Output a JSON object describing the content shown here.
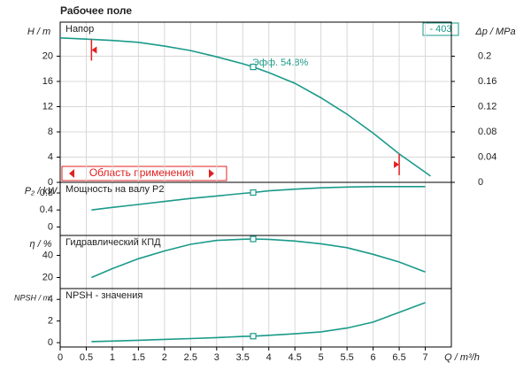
{
  "chart_data": [
    {
      "type": "line",
      "title": "Рабочее поле",
      "label": "- 403",
      "panel_title": "Напор",
      "ylabel": "H / m",
      "y2label": "Δp / MPa",
      "annotation": "Эфф. 54.8%",
      "range_label": "Область применения",
      "x": [
        0,
        0.5,
        1,
        1.5,
        2,
        2.5,
        3,
        3.5,
        3.7,
        4,
        4.5,
        5,
        5.5,
        6,
        6.5,
        7,
        7.1
      ],
      "series": [
        {
          "name": "Напор",
          "color": "#1a9a8a",
          "values": [
            22.9,
            22.7,
            22.5,
            22.2,
            21.6,
            20.9,
            19.9,
            18.8,
            18.3,
            17.4,
            15.7,
            13.4,
            10.8,
            7.8,
            4.5,
            1.6,
            1.0
          ]
        }
      ],
      "operating_point": {
        "x": 3.7,
        "y": 18.3
      },
      "range": [
        0.6,
        6.5
      ],
      "range_color": "#e02020",
      "ylim": [
        0,
        25.4
      ],
      "yticks": [
        0,
        4,
        8,
        12,
        16,
        20
      ],
      "y2lim": [
        0,
        0.254
      ],
      "y2ticks": [
        0,
        0.04,
        0.08,
        0.12,
        0.16,
        0.2
      ],
      "grid": true
    },
    {
      "type": "line",
      "panel_title": "Мощность на валу P2",
      "ylabel": "P₂ / kW",
      "x": [
        0.6,
        1,
        1.5,
        2,
        2.5,
        3,
        3.5,
        3.7,
        4,
        4.5,
        5,
        5.5,
        6,
        6.5,
        7
      ],
      "series": [
        {
          "name": "Мощность на валу P2",
          "color": "#1a9a8a",
          "values": [
            0.4,
            0.46,
            0.53,
            0.6,
            0.67,
            0.73,
            0.79,
            0.81,
            0.85,
            0.89,
            0.92,
            0.94,
            0.95,
            0.95,
            0.95
          ]
        }
      ],
      "operating_point": {
        "x": 3.7,
        "y": 0.81
      },
      "ylim": [
        -0.2,
        1.05
      ],
      "yticks": [
        0,
        0.4,
        0.8
      ],
      "grid": false
    },
    {
      "type": "line",
      "panel_title": "Гидравлический КПД",
      "ylabel": "η / %",
      "x": [
        0.6,
        1,
        1.5,
        2,
        2.5,
        3,
        3.5,
        3.7,
        4,
        4.5,
        5,
        5.5,
        6,
        6.5,
        7
      ],
      "series": [
        {
          "name": "Гидравлический КПД",
          "color": "#1a9a8a",
          "values": [
            20,
            28,
            37,
            44,
            50,
            53.5,
            54.6,
            54.8,
            54.5,
            53,
            50.5,
            47,
            41,
            34,
            25
          ]
        }
      ],
      "operating_point": {
        "x": 3.7,
        "y": 54.8
      },
      "ylim": [
        10,
        58
      ],
      "yticks": [
        20,
        40
      ],
      "grid": false
    },
    {
      "type": "line",
      "panel_title": "NPSH - значения",
      "ylabel": "NPSH / m",
      "xlabel": "Q / m³/h",
      "x": [
        0.6,
        1,
        1.5,
        2,
        2.5,
        3,
        3.5,
        3.7,
        4,
        4.5,
        5,
        5.5,
        6,
        6.5,
        7
      ],
      "series": [
        {
          "name": "NPSH - значения",
          "color": "#1a9a8a",
          "values": [
            0.1,
            0.15,
            0.22,
            0.3,
            0.38,
            0.47,
            0.57,
            0.6,
            0.68,
            0.82,
            1.0,
            1.35,
            1.9,
            2.8,
            3.7
          ]
        }
      ],
      "operating_point": {
        "x": 3.7,
        "y": 0.6
      },
      "xlim": [
        0,
        7.5
      ],
      "xticks": [
        0,
        0.5,
        1,
        1.5,
        2,
        2.5,
        3,
        3.5,
        4,
        4.5,
        5,
        5.5,
        6,
        6.5,
        7
      ],
      "ylim": [
        -0.4,
        5
      ],
      "yticks": [
        0,
        2,
        4
      ],
      "grid": false
    }
  ]
}
